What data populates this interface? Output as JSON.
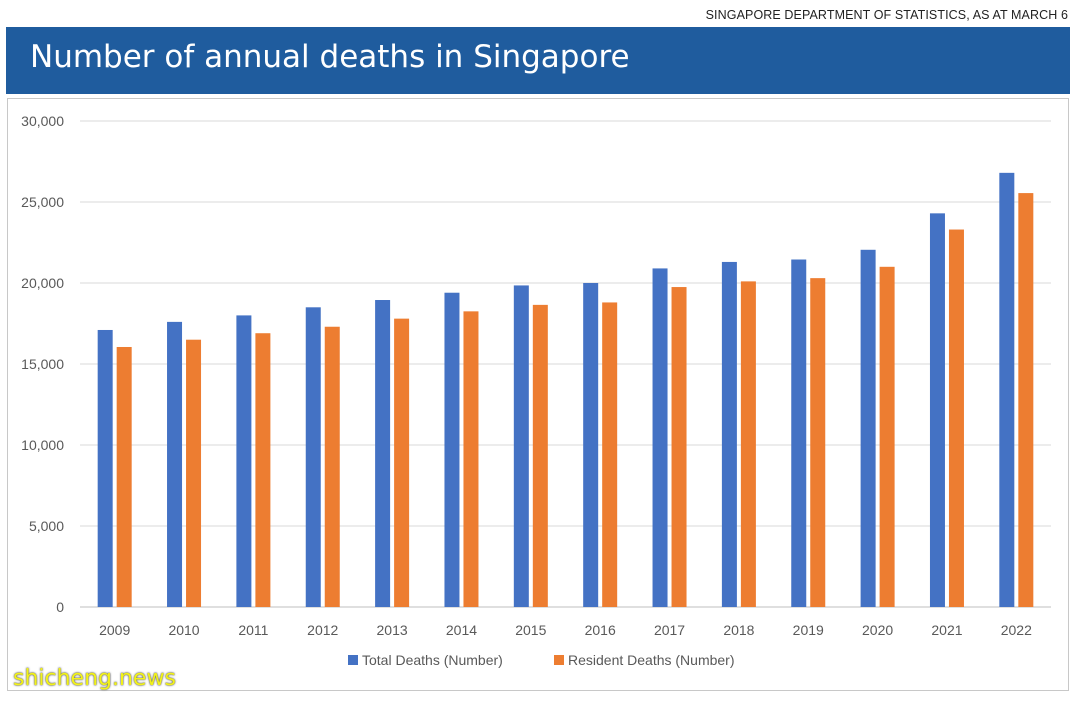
{
  "source_note": "SINGAPORE DEPARTMENT OF STATISTICS, AS AT MARCH 6",
  "watermark": "shicheng.news",
  "colors": {
    "banner": "#1f5c9e",
    "total": "#4472c4",
    "resident": "#ed7d31",
    "grid": "#d9d9d9"
  },
  "chart_data": {
    "type": "bar",
    "title": "Number of annual deaths in Singapore",
    "categories": [
      "2009",
      "2010",
      "2011",
      "2012",
      "2013",
      "2014",
      "2015",
      "2016",
      "2017",
      "2018",
      "2019",
      "2020",
      "2021",
      "2022"
    ],
    "series": [
      {
        "name": "Total Deaths (Number)",
        "color": "#4472c4",
        "values": [
          17100,
          17600,
          18000,
          18500,
          18950,
          19400,
          19850,
          20000,
          20900,
          21300,
          21450,
          22050,
          24300,
          26800
        ]
      },
      {
        "name": "Resident Deaths (Number)",
        "color": "#ed7d31",
        "values": [
          16050,
          16500,
          16900,
          17300,
          17800,
          18250,
          18650,
          18800,
          19750,
          20100,
          20300,
          21000,
          23300,
          25550
        ]
      }
    ],
    "ylim": [
      0,
      30000
    ],
    "yticks": [
      "0",
      "5,000",
      "10,000",
      "15,000",
      "20,000",
      "25,000",
      "30,000"
    ],
    "ytick_values": [
      0,
      5000,
      10000,
      15000,
      20000,
      25000,
      30000
    ],
    "grid": true,
    "legend": "bottom"
  }
}
